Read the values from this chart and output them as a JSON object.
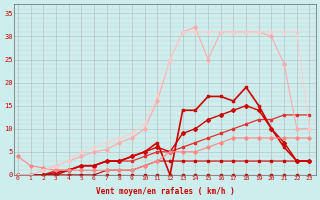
{
  "background_color": "#ceeeed",
  "grid_color": "#aaaaaa",
  "xlabel": "Vent moyen/en rafales ( km/h )",
  "xlabel_color": "#cc0000",
  "ylabel_color": "#cc0000",
  "yticks": [
    0,
    5,
    10,
    15,
    20,
    25,
    30,
    35
  ],
  "xticks": [
    0,
    1,
    2,
    3,
    4,
    5,
    6,
    7,
    8,
    9,
    10,
    11,
    12,
    13,
    14,
    15,
    16,
    17,
    18,
    19,
    20,
    21,
    22,
    23
  ],
  "xlim": [
    -0.3,
    23.5
  ],
  "ylim": [
    0,
    37
  ],
  "series": [
    {
      "x": [
        0,
        1,
        2,
        3,
        4,
        5,
        6,
        7,
        8,
        9,
        10,
        11,
        12,
        13,
        14,
        15,
        16,
        17,
        18,
        19,
        20,
        21,
        22,
        23
      ],
      "y": [
        0,
        0,
        0,
        0,
        0,
        0,
        0,
        0,
        0,
        0,
        0,
        0,
        0,
        0,
        0,
        0,
        0,
        0,
        0,
        0,
        0,
        0,
        0,
        0
      ],
      "color": "#cc0000",
      "linewidth": 0.8,
      "marker": "s",
      "markersize": 1.5,
      "alpha": 1.0
    },
    {
      "x": [
        0,
        1,
        2,
        3,
        4,
        5,
        6,
        7,
        8,
        9,
        10,
        11,
        12,
        13,
        14,
        15,
        16,
        17,
        18,
        19,
        20,
        21,
        22,
        23
      ],
      "y": [
        0,
        0,
        0,
        0,
        0,
        0,
        0,
        1,
        1,
        1,
        2,
        3,
        3,
        3,
        3,
        3,
        3,
        3,
        3,
        3,
        3,
        3,
        3,
        3
      ],
      "color": "#cc0000",
      "linewidth": 0.8,
      "marker": "s",
      "markersize": 1.5,
      "alpha": 1.0
    },
    {
      "x": [
        0,
        1,
        2,
        3,
        4,
        5,
        6,
        7,
        8,
        9,
        10,
        11,
        12,
        13,
        14,
        15,
        16,
        17,
        18,
        19,
        20,
        21,
        22,
        23
      ],
      "y": [
        0,
        0,
        0,
        1,
        1,
        2,
        2,
        3,
        3,
        3,
        4,
        5,
        5,
        6,
        7,
        8,
        9,
        10,
        11,
        12,
        12,
        13,
        13,
        13
      ],
      "color": "#dd3333",
      "linewidth": 0.9,
      "marker": "s",
      "markersize": 1.8,
      "alpha": 1.0
    },
    {
      "x": [
        0,
        1,
        2,
        3,
        4,
        5,
        6,
        7,
        8,
        9,
        10,
        11,
        12,
        13,
        14,
        15,
        16,
        17,
        18,
        19,
        20,
        21,
        22,
        23
      ],
      "y": [
        0,
        0,
        0,
        0,
        1,
        2,
        2,
        3,
        3,
        4,
        5,
        6,
        5,
        9,
        10,
        12,
        13,
        14,
        15,
        14,
        10,
        7,
        3,
        3
      ],
      "color": "#cc0000",
      "linewidth": 1.0,
      "marker": "D",
      "markersize": 2.0,
      "alpha": 1.0
    },
    {
      "x": [
        0,
        1,
        2,
        3,
        4,
        5,
        6,
        7,
        8,
        9,
        10,
        11,
        12,
        13,
        14,
        15,
        16,
        17,
        18,
        19,
        20,
        21,
        22,
        23
      ],
      "y": [
        0,
        0,
        0,
        0.5,
        1,
        2,
        2,
        3,
        3,
        4,
        5,
        7,
        0,
        14,
        14,
        17,
        17,
        16,
        19,
        15,
        10,
        6,
        3,
        3
      ],
      "color": "#cc0000",
      "linewidth": 1.2,
      "marker": "s",
      "markersize": 2.0,
      "alpha": 1.0
    },
    {
      "x": [
        0,
        1,
        2,
        3,
        4,
        5,
        6,
        7,
        8,
        9,
        10,
        11,
        12,
        13,
        14,
        15,
        16,
        17,
        18,
        19,
        20,
        21,
        22,
        23
      ],
      "y": [
        4,
        2,
        1.5,
        1,
        1,
        1,
        1,
        1,
        1,
        1,
        2,
        3,
        5,
        5,
        5,
        6,
        7,
        8,
        8,
        8,
        8,
        8,
        8,
        8
      ],
      "color": "#ff8888",
      "linewidth": 0.8,
      "marker": "D",
      "markersize": 1.8,
      "alpha": 1.0
    },
    {
      "x": [
        0,
        1,
        2,
        3,
        4,
        5,
        6,
        7,
        8,
        9,
        10,
        11,
        12,
        13,
        14,
        15,
        16,
        17,
        18,
        19,
        20,
        21,
        22,
        23
      ],
      "y": [
        0,
        0,
        1,
        2,
        3,
        4,
        5,
        5.5,
        7,
        8,
        10,
        16,
        25,
        31,
        32,
        25,
        31,
        31,
        31,
        31,
        30,
        24,
        10,
        10
      ],
      "color": "#ffaaaa",
      "linewidth": 0.8,
      "marker": "D",
      "markersize": 1.8,
      "alpha": 1.0
    },
    {
      "x": [
        0,
        1,
        2,
        3,
        4,
        5,
        6,
        7,
        8,
        9,
        10,
        11,
        12,
        13,
        14,
        15,
        16,
        17,
        18,
        19,
        20,
        21,
        22,
        23
      ],
      "y": [
        0,
        0,
        1,
        2,
        3,
        5,
        6,
        7,
        8,
        9,
        11,
        17,
        25,
        31,
        31,
        31,
        31,
        31,
        31,
        31,
        31,
        31,
        31,
        10
      ],
      "color": "#ffcccc",
      "linewidth": 0.7,
      "marker": "D",
      "markersize": 1.5,
      "alpha": 1.0
    }
  ]
}
